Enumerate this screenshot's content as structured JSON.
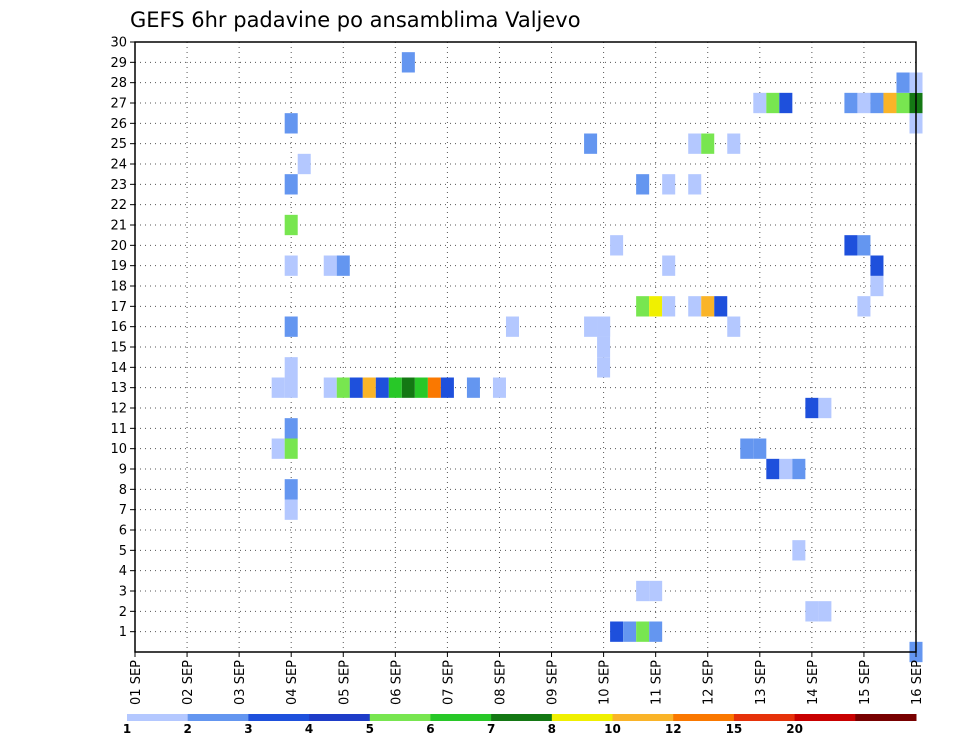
{
  "chart_data": {
    "type": "heatmap",
    "title": "GEFS 6hr padavine po ansamblima Valjevo",
    "xlabel": "",
    "ylabel": "",
    "x_ticks": [
      "01 SEP",
      "02 SEP",
      "03 SEP",
      "04 SEP",
      "05 SEP",
      "06 SEP",
      "07 SEP",
      "08 SEP",
      "09 SEP",
      "10 SEP",
      "11 SEP",
      "12 SEP",
      "13 SEP",
      "14 SEP",
      "15 SEP",
      "16 SEP"
    ],
    "xlim": [
      "01 SEP 00h",
      "16 SEP 00h"
    ],
    "time_step_hours": 6,
    "y_ticks": [
      1,
      2,
      3,
      4,
      5,
      6,
      7,
      8,
      9,
      10,
      11,
      12,
      13,
      14,
      15,
      16,
      17,
      18,
      19,
      20,
      21,
      22,
      23,
      24,
      25,
      26,
      27,
      28,
      29,
      30
    ],
    "ylim": [
      0,
      30
    ],
    "grid": true,
    "colorbar": {
      "bounds": [
        1,
        2,
        3,
        4,
        5,
        6,
        7,
        8,
        10,
        12,
        15,
        20
      ],
      "labels": [
        "1",
        "2",
        "3",
        "4",
        "5",
        "6",
        "7",
        "8",
        "10",
        "12",
        "15",
        "20"
      ],
      "colors": [
        "#b4c8ff",
        "#6496f0",
        "#1e50dc",
        "#1e3cc8",
        "#78e650",
        "#28c828",
        "#147814",
        "#f0f000",
        "#fab428",
        "#fa7800",
        "#e6320a",
        "#c80000",
        "#780000"
      ]
    },
    "cells": [
      [
        "10 SEP 06h",
        1,
        3
      ],
      [
        "10 SEP 12h",
        1,
        2
      ],
      [
        "10 SEP 18h",
        1,
        5
      ],
      [
        "11 SEP 00h",
        1,
        2
      ],
      [
        "14 SEP 00h",
        2,
        1
      ],
      [
        "14 SEP 06h",
        2,
        1
      ],
      [
        "10 SEP 18h",
        3,
        1
      ],
      [
        "11 SEP 00h",
        3,
        1
      ],
      [
        "13 SEP 18h",
        5,
        1
      ],
      [
        "04 SEP 00h",
        7,
        1
      ],
      [
        "04 SEP 00h",
        8,
        2
      ],
      [
        "13 SEP 06h",
        9,
        3
      ],
      [
        "13 SEP 12h",
        9,
        1
      ],
      [
        "13 SEP 18h",
        9,
        2
      ],
      [
        "03 SEP 18h",
        10,
        1
      ],
      [
        "04 SEP 00h",
        10,
        5
      ],
      [
        "12 SEP 18h",
        10,
        2
      ],
      [
        "13 SEP 00h",
        10,
        2
      ],
      [
        "04 SEP 00h",
        11,
        2
      ],
      [
        "14 SEP 00h",
        12,
        3
      ],
      [
        "14 SEP 06h",
        12,
        1
      ],
      [
        "03 SEP 18h",
        13,
        1
      ],
      [
        "04 SEP 00h",
        13,
        1
      ],
      [
        "04 SEP 18h",
        13,
        1
      ],
      [
        "05 SEP 00h",
        13,
        5
      ],
      [
        "05 SEP 06h",
        13,
        3
      ],
      [
        "05 SEP 12h",
        13,
        9
      ],
      [
        "05 SEP 18h",
        13,
        3
      ],
      [
        "06 SEP 00h",
        13,
        6
      ],
      [
        "06 SEP 06h",
        13,
        7
      ],
      [
        "06 SEP 12h",
        13,
        6
      ],
      [
        "06 SEP 18h",
        13,
        10
      ],
      [
        "07 SEP 00h",
        13,
        3
      ],
      [
        "07 SEP 12h",
        13,
        2
      ],
      [
        "08 SEP 00h",
        13,
        1
      ],
      [
        "04 SEP 00h",
        14,
        1
      ],
      [
        "10 SEP 00h",
        14,
        1
      ],
      [
        "10 SEP 00h",
        15,
        1
      ],
      [
        "04 SEP 00h",
        16,
        2
      ],
      [
        "08 SEP 06h",
        16,
        1
      ],
      [
        "09 SEP 18h",
        16,
        1
      ],
      [
        "10 SEP 00h",
        16,
        1
      ],
      [
        "10 SEP 00h",
        16,
        1
      ],
      [
        "12 SEP 12h",
        16,
        1
      ],
      [
        "10 SEP 18h",
        17,
        5
      ],
      [
        "11 SEP 00h",
        17,
        8
      ],
      [
        "11 SEP 06h",
        17,
        1
      ],
      [
        "11 SEP 18h",
        17,
        1
      ],
      [
        "12 SEP 00h",
        17,
        9
      ],
      [
        "12 SEP 06h",
        17,
        3
      ],
      [
        "15 SEP 00h",
        17,
        1
      ],
      [
        "15 SEP 06h",
        18,
        1
      ],
      [
        "15 SEP 06h",
        19,
        3
      ],
      [
        "04 SEP 00h",
        19,
        1
      ],
      [
        "04 SEP 18h",
        19,
        1
      ],
      [
        "05 SEP 00h",
        19,
        2
      ],
      [
        "11 SEP 06h",
        19,
        1
      ],
      [
        "10 SEP 06h",
        20,
        1
      ],
      [
        "14 SEP 18h",
        20,
        3
      ],
      [
        "15 SEP 00h",
        20,
        2
      ],
      [
        "04 SEP 00h",
        21,
        5
      ],
      [
        "04 SEP 00h",
        23,
        2
      ],
      [
        "10 SEP 18h",
        23,
        2
      ],
      [
        "11 SEP 06h",
        23,
        1
      ],
      [
        "11 SEP 18h",
        23,
        1
      ],
      [
        "04 SEP 06h",
        24,
        1
      ],
      [
        "09 SEP 18h",
        25,
        2
      ],
      [
        "11 SEP 18h",
        25,
        1
      ],
      [
        "12 SEP 00h",
        25,
        5
      ],
      [
        "12 SEP 12h",
        25,
        1
      ],
      [
        "04 SEP 00h",
        26,
        2
      ],
      [
        "16 SEP 00h",
        26,
        1
      ],
      [
        "13 SEP 00h",
        27,
        1
      ],
      [
        "13 SEP 06h",
        27,
        5
      ],
      [
        "13 SEP 12h",
        27,
        3
      ],
      [
        "14 SEP 18h",
        27,
        2
      ],
      [
        "15 SEP 00h",
        27,
        1
      ],
      [
        "15 SEP 06h",
        27,
        2
      ],
      [
        "15 SEP 12h",
        27,
        9
      ],
      [
        "15 SEP 18h",
        27,
        5
      ],
      [
        "16 SEP 00h",
        27,
        7
      ],
      [
        "15 SEP 18h",
        28,
        2
      ],
      [
        "16 SEP 00h",
        28,
        1
      ],
      [
        "06 SEP 06h",
        29,
        2
      ],
      [
        "16 SEP 00h",
        0,
        2
      ]
    ]
  }
}
